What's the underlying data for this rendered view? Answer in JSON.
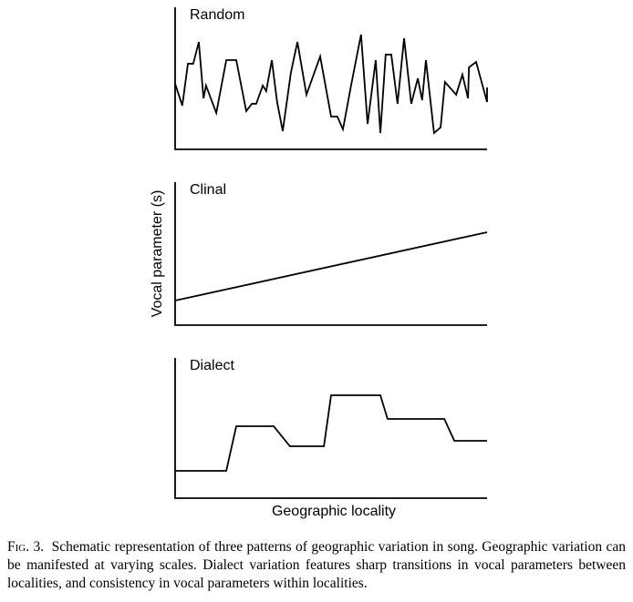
{
  "chart_data": [
    {
      "type": "line",
      "title": "Random",
      "xlim": [
        0,
        100
      ],
      "ylim": [
        0,
        100
      ],
      "x": [
        0,
        2.3,
        4.1,
        5.8,
        7.6,
        9.1,
        9.9,
        13.2,
        16.4,
        19.6,
        22.8,
        24.6,
        26.0,
        28.1,
        29.2,
        31.0,
        32.7,
        34.5,
        37.1,
        39.2,
        42.1,
        46.5,
        50.0,
        52.0,
        53.8,
        56.4,
        59.6,
        61.7,
        64.3,
        65.8,
        67.5,
        69.3,
        71.3,
        73.4,
        75.7,
        77.8,
        79.2,
        80.4,
        83.0,
        85.1,
        86.5,
        90.1,
        92.1,
        93.9,
        94.2,
        96.5,
        100,
        100
      ],
      "values": [
        46.2,
        30.8,
        60.3,
        60.3,
        75.6,
        35.9,
        44.9,
        25.6,
        62.8,
        62.8,
        26.9,
        32.1,
        32.1,
        44.9,
        41.0,
        62.8,
        33.3,
        12.8,
        53.8,
        75.6,
        38.5,
        65.4,
        23.1,
        23.1,
        14.1,
        44.9,
        80.8,
        17.9,
        62.8,
        11.5,
        66.7,
        66.7,
        32.1,
        78.2,
        32.1,
        50.0,
        34.6,
        62.8,
        11.5,
        15.4,
        47.4,
        38.5,
        52.6,
        35.9,
        57.7,
        61.5,
        33.3,
        43.6
      ],
      "color": "#000000"
    },
    {
      "type": "line",
      "title": "Clinal",
      "ylabel": "Vocal parameter (s)",
      "xlim": [
        0,
        100
      ],
      "ylim": [
        0,
        100
      ],
      "x": [
        0,
        100
      ],
      "values": [
        17.2,
        65.0
      ],
      "color": "#000000"
    },
    {
      "type": "line",
      "title": "Dialect",
      "xlabel": "Geographic locality",
      "xlim": [
        0,
        100
      ],
      "ylim": [
        0,
        100
      ],
      "x": [
        0,
        16.4,
        19.6,
        31.6,
        36.8,
        47.7,
        50.0,
        65.8,
        68.1,
        86.3,
        89.5,
        100
      ],
      "values": [
        19.5,
        19.5,
        51.3,
        51.3,
        37.0,
        37.0,
        73.4,
        73.4,
        56.5,
        56.5,
        40.9,
        40.9
      ],
      "color": "#000000"
    }
  ],
  "caption": {
    "label": "Fig. 3.",
    "text": "Schematic representation of three patterns of geographic variation in song. Geographic variation can be manifested at varying scales. Dialect variation features sharp transitions in vocal parameters between localities, and consistency in vocal parameters within localities."
  }
}
